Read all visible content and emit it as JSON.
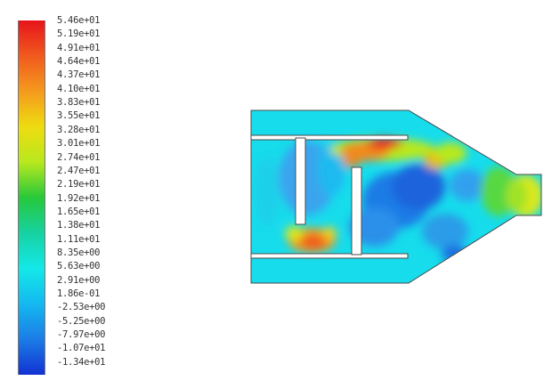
{
  "legend": {
    "labels": [
      "5.46e+01",
      "5.19e+01",
      "4.91e+01",
      "4.64e+01",
      "4.37e+01",
      "4.10e+01",
      "3.83e+01",
      "3.55e+01",
      "3.28e+01",
      "3.01e+01",
      "2.74e+01",
      "2.47e+01",
      "2.19e+01",
      "1.92e+01",
      "1.65e+01",
      "1.38e+01",
      "1.11e+01",
      "8.35e+00",
      "5.63e+00",
      "2.91e+00",
      "1.86e-01",
      "-2.53e+00",
      "-5.25e+00",
      "-7.97e+00",
      "-1.07e+01",
      "-1.34e+01"
    ],
    "max": 54.6,
    "min": -13.4
  },
  "colors": {
    "scale": [
      "#e8141c",
      "#f05a1e",
      "#f59a1e",
      "#eedc10",
      "#b8e81e",
      "#27c83a",
      "#16d2a2",
      "#14e8e8",
      "#14b8f0",
      "#1c7ce6",
      "#1232d2"
    ],
    "outline": "#4a4a4a"
  }
}
